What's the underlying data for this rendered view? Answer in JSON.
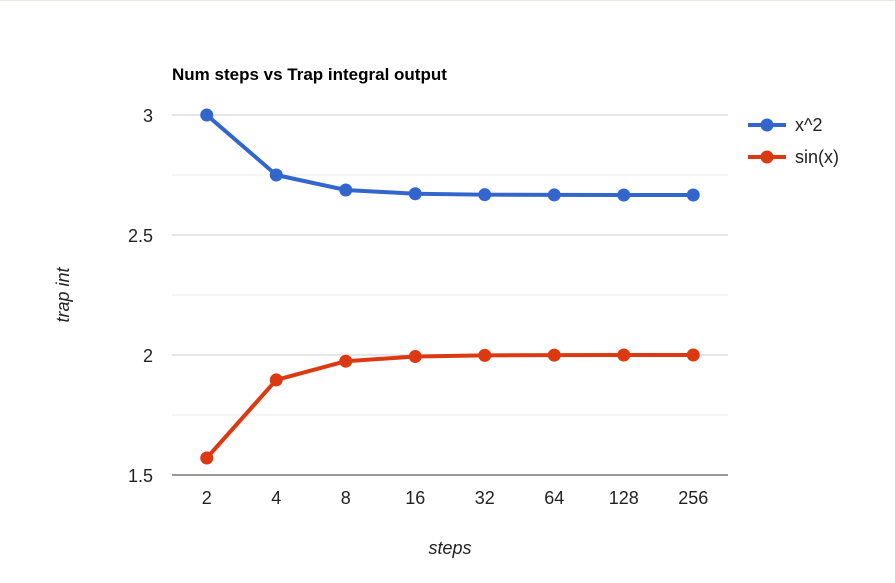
{
  "chart_data": {
    "type": "line",
    "title": "Num steps vs Trap integral output",
    "xlabel": "steps",
    "ylabel": "trap int",
    "categories": [
      "2",
      "4",
      "8",
      "16",
      "32",
      "64",
      "128",
      "256"
    ],
    "ylim": [
      1.5,
      3
    ],
    "yticks": [
      "1.5",
      "2",
      "2.5",
      "3"
    ],
    "ytick_values": [
      1.5,
      2,
      2.5,
      3
    ],
    "minor_gridlines": [
      1.75,
      2.25,
      2.75
    ],
    "grid": true,
    "legend_position": "right",
    "series": [
      {
        "name": "x^2",
        "color": "#3366cc",
        "values": [
          3.0,
          2.75,
          2.6875,
          2.671875,
          2.6679688,
          2.6669922,
          2.666748,
          2.666687
        ]
      },
      {
        "name": "sin(x)",
        "color": "#dc3912",
        "values": [
          1.5708,
          1.8961,
          1.9742,
          1.9936,
          1.9984,
          1.9996,
          1.9999,
          2.0
        ]
      }
    ]
  }
}
